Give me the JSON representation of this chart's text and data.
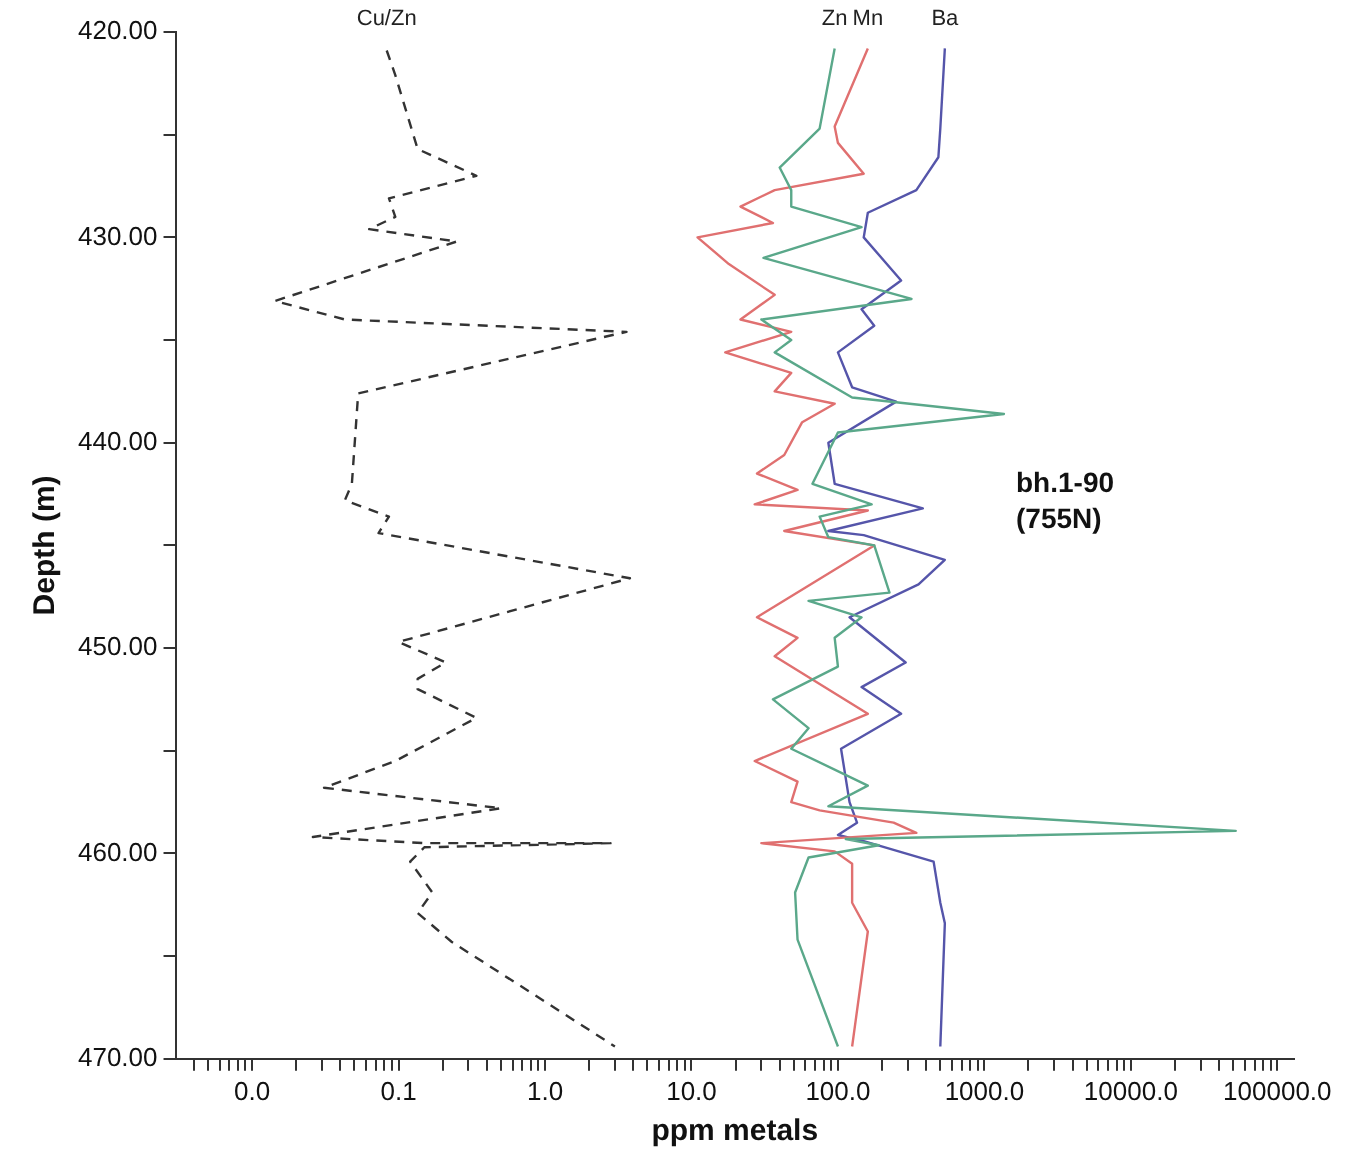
{
  "chart_data": {
    "type": "line",
    "xlabel": "ppm metals",
    "ylabel": "Depth (m)",
    "log": "x",
    "grid": false,
    "legend": false,
    "marker": "none",
    "xlim": [
      0.003,
      130000
    ],
    "ylim": [
      470,
      420
    ],
    "xticks": [
      {
        "value": 0.004,
        "label": null
      },
      {
        "value": 0.005,
        "label": null
      },
      {
        "value": 0.006,
        "label": null
      },
      {
        "value": 0.007,
        "label": null
      },
      {
        "value": 0.008,
        "label": null
      },
      {
        "value": 0.009,
        "label": null
      },
      {
        "value": 0.01,
        "label": "0.0"
      },
      {
        "value": 0.02,
        "label": null
      },
      {
        "value": 0.03,
        "label": null
      },
      {
        "value": 0.04,
        "label": null
      },
      {
        "value": 0.05,
        "label": null
      },
      {
        "value": 0.06,
        "label": null
      },
      {
        "value": 0.07,
        "label": null
      },
      {
        "value": 0.08,
        "label": null
      },
      {
        "value": 0.09,
        "label": null
      },
      {
        "value": 0.1,
        "label": "0.1"
      },
      {
        "value": 0.2,
        "label": null
      },
      {
        "value": 0.3,
        "label": null
      },
      {
        "value": 0.4,
        "label": null
      },
      {
        "value": 0.5,
        "label": null
      },
      {
        "value": 0.6,
        "label": null
      },
      {
        "value": 0.7,
        "label": null
      },
      {
        "value": 0.8,
        "label": null
      },
      {
        "value": 0.9,
        "label": null
      },
      {
        "value": 1,
        "label": "1.0"
      },
      {
        "value": 2,
        "label": null
      },
      {
        "value": 3,
        "label": null
      },
      {
        "value": 4,
        "label": null
      },
      {
        "value": 5,
        "label": null
      },
      {
        "value": 6,
        "label": null
      },
      {
        "value": 7,
        "label": null
      },
      {
        "value": 8,
        "label": null
      },
      {
        "value": 9,
        "label": null
      },
      {
        "value": 10,
        "label": "10.0"
      },
      {
        "value": 20,
        "label": null
      },
      {
        "value": 30,
        "label": null
      },
      {
        "value": 40,
        "label": null
      },
      {
        "value": 50,
        "label": null
      },
      {
        "value": 60,
        "label": null
      },
      {
        "value": 70,
        "label": null
      },
      {
        "value": 80,
        "label": null
      },
      {
        "value": 90,
        "label": null
      },
      {
        "value": 100,
        "label": "100.0"
      },
      {
        "value": 200,
        "label": null
      },
      {
        "value": 300,
        "label": null
      },
      {
        "value": 400,
        "label": null
      },
      {
        "value": 500,
        "label": null
      },
      {
        "value": 600,
        "label": null
      },
      {
        "value": 700,
        "label": null
      },
      {
        "value": 800,
        "label": null
      },
      {
        "value": 900,
        "label": null
      },
      {
        "value": 1000,
        "label": "1000.0"
      },
      {
        "value": 2000,
        "label": null
      },
      {
        "value": 3000,
        "label": null
      },
      {
        "value": 4000,
        "label": null
      },
      {
        "value": 5000,
        "label": null
      },
      {
        "value": 6000,
        "label": null
      },
      {
        "value": 7000,
        "label": null
      },
      {
        "value": 8000,
        "label": null
      },
      {
        "value": 9000,
        "label": null
      },
      {
        "value": 10000,
        "label": "10000.0"
      },
      {
        "value": 20000,
        "label": null
      },
      {
        "value": 30000,
        "label": null
      },
      {
        "value": 40000,
        "label": null
      },
      {
        "value": 50000,
        "label": null
      },
      {
        "value": 60000,
        "label": null
      },
      {
        "value": 70000,
        "label": null
      },
      {
        "value": 80000,
        "label": null
      },
      {
        "value": 90000,
        "label": null
      },
      {
        "value": 100000,
        "label": "100000.0"
      }
    ],
    "yticks": [
      {
        "value": 420,
        "label": "420.00"
      },
      {
        "value": 425,
        "label": null
      },
      {
        "value": 430,
        "label": "430.00"
      },
      {
        "value": 435,
        "label": null
      },
      {
        "value": 440,
        "label": "440.00"
      },
      {
        "value": 445,
        "label": null
      },
      {
        "value": 450,
        "label": "450.00"
      },
      {
        "value": 455,
        "label": null
      },
      {
        "value": 460,
        "label": "460.00"
      },
      {
        "value": 465,
        "label": null
      },
      {
        "value": 470,
        "label": "470.00"
      }
    ],
    "annotations": [
      "bh.1-90\n(755N)"
    ],
    "series": [
      {
        "name": "Cu/Zn",
        "color": "#333333",
        "line_style": "dashed",
        "x": [
          0.083,
          0.095,
          0.135,
          0.34,
          0.086,
          0.095,
          0.063,
          0.25,
          0.0143,
          0.043,
          3.6,
          0.053,
          0.048,
          0.043,
          0.086,
          0.073,
          3.8,
          0.1,
          0.21,
          0.135,
          0.135,
          0.34,
          0.095,
          0.031,
          0.5,
          0.026,
          0.15,
          2.8,
          0.15,
          0.12,
          0.17,
          0.135,
          0.23,
          3.0
        ],
        "values": [
          420.9,
          422.1,
          425.7,
          427.0,
          428.1,
          429.0,
          429.6,
          430.2,
          433.1,
          434.0,
          434.6,
          437.6,
          442.0,
          442.8,
          443.6,
          444.4,
          446.6,
          449.7,
          450.7,
          451.5,
          452.0,
          453.4,
          455.5,
          456.8,
          457.8,
          459.2,
          459.5,
          459.5,
          459.7,
          460.4,
          461.9,
          462.9,
          464.3,
          469.4
        ]
      },
      {
        "name": "Zn",
        "color": "#5aa88a",
        "line_style": "solid",
        "x": [
          95,
          75,
          40,
          48,
          48,
          145,
          31,
          318,
          30,
          48,
          37,
          125,
          1360,
          100,
          67,
          170,
          75,
          86,
          177,
          225,
          63,
          145,
          95,
          100,
          36,
          63,
          48,
          160,
          86,
          52000,
          113,
          190,
          63,
          51,
          53,
          100
        ],
        "values": [
          420.8,
          424.7,
          426.6,
          427.7,
          428.5,
          429.5,
          431.0,
          433.0,
          434.0,
          435.0,
          435.6,
          437.8,
          438.6,
          439.5,
          442.0,
          443.0,
          443.6,
          444.6,
          445.0,
          447.3,
          447.7,
          448.5,
          449.5,
          450.9,
          452.5,
          453.9,
          454.9,
          456.7,
          457.7,
          458.9,
          459.3,
          459.6,
          460.2,
          461.9,
          464.2,
          469.4
        ]
      },
      {
        "name": "Mn",
        "color": "#e07070",
        "line_style": "solid",
        "x": [
          160,
          95,
          100,
          150,
          37,
          21.6,
          36,
          11,
          18,
          37,
          21.6,
          48,
          17,
          48,
          37,
          95,
          57,
          43,
          28,
          53,
          27,
          160,
          43,
          177,
          28,
          53,
          37,
          160,
          27,
          53,
          48,
          75,
          240,
          343,
          30,
          95,
          125,
          125,
          160,
          125
        ],
        "values": [
          420.8,
          424.6,
          425.4,
          426.9,
          427.7,
          428.5,
          429.3,
          430.0,
          431.3,
          432.8,
          434.0,
          434.6,
          435.6,
          436.6,
          437.5,
          438.1,
          439.0,
          440.6,
          441.5,
          442.3,
          443.0,
          443.3,
          444.3,
          445.0,
          448.5,
          449.5,
          450.4,
          453.2,
          455.5,
          456.5,
          457.5,
          457.9,
          458.5,
          459.0,
          459.5,
          459.9,
          460.5,
          462.4,
          463.8,
          469.4
        ]
      },
      {
        "name": "Ba",
        "color": "#5555aa",
        "line_style": "solid",
        "x": [
          537,
          500,
          485,
          343,
          160,
          150,
          270,
          145,
          177,
          100,
          125,
          250,
          86,
          95,
          380,
          86,
          150,
          537,
          355,
          120,
          290,
          145,
          270,
          105,
          120,
          135,
          100,
          150,
          450,
          500,
          537,
          500
        ],
        "values": [
          420.8,
          424.7,
          426.1,
          427.7,
          428.8,
          430.0,
          432.1,
          433.5,
          434.3,
          435.6,
          437.3,
          438.0,
          440.0,
          442.0,
          443.2,
          444.3,
          444.5,
          445.7,
          446.9,
          448.5,
          450.7,
          451.9,
          453.2,
          454.9,
          457.5,
          458.5,
          459.1,
          459.4,
          460.4,
          462.4,
          463.4,
          469.4
        ]
      }
    ]
  }
}
